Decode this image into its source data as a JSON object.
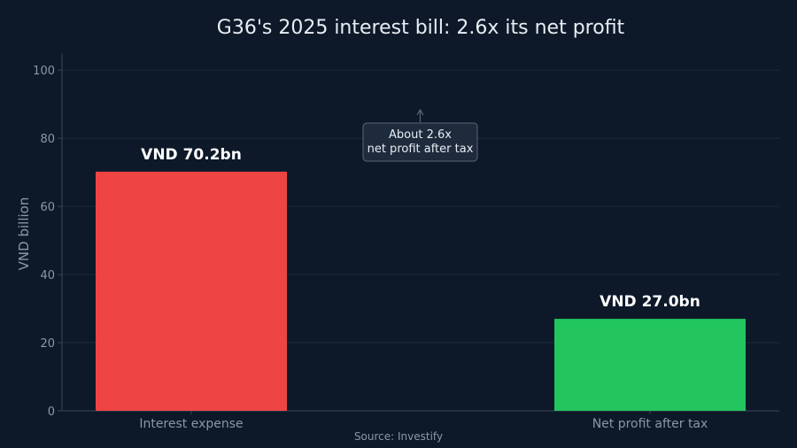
{
  "chart_data": {
    "type": "bar",
    "title": "G36's 2025 interest bill: 2.6x its net profit",
    "xlabel": "",
    "ylabel": "VND billion",
    "categories": [
      "Interest expense",
      "Net profit after tax"
    ],
    "values": [
      70.2,
      27.0
    ],
    "data_labels": [
      "VND 70.2bn",
      "VND 27.0bn"
    ],
    "ylim": [
      0,
      105
    ],
    "yticks": [
      0,
      20,
      40,
      60,
      80,
      100
    ],
    "grid": true,
    "annotation": {
      "lines": [
        "About 2.6x",
        "net profit after tax"
      ]
    },
    "source": "Source: Investify",
    "colors": {
      "background": "#0d1929",
      "bars": [
        "#ef4444",
        "#22c55e"
      ],
      "text": "#e8edf3",
      "muted_text": "#8b96a8",
      "grid": "#1c2a3c",
      "axis": "#3a4658",
      "annotation_bg": "#1e2b3c",
      "annotation_border": "#5a6678"
    }
  }
}
